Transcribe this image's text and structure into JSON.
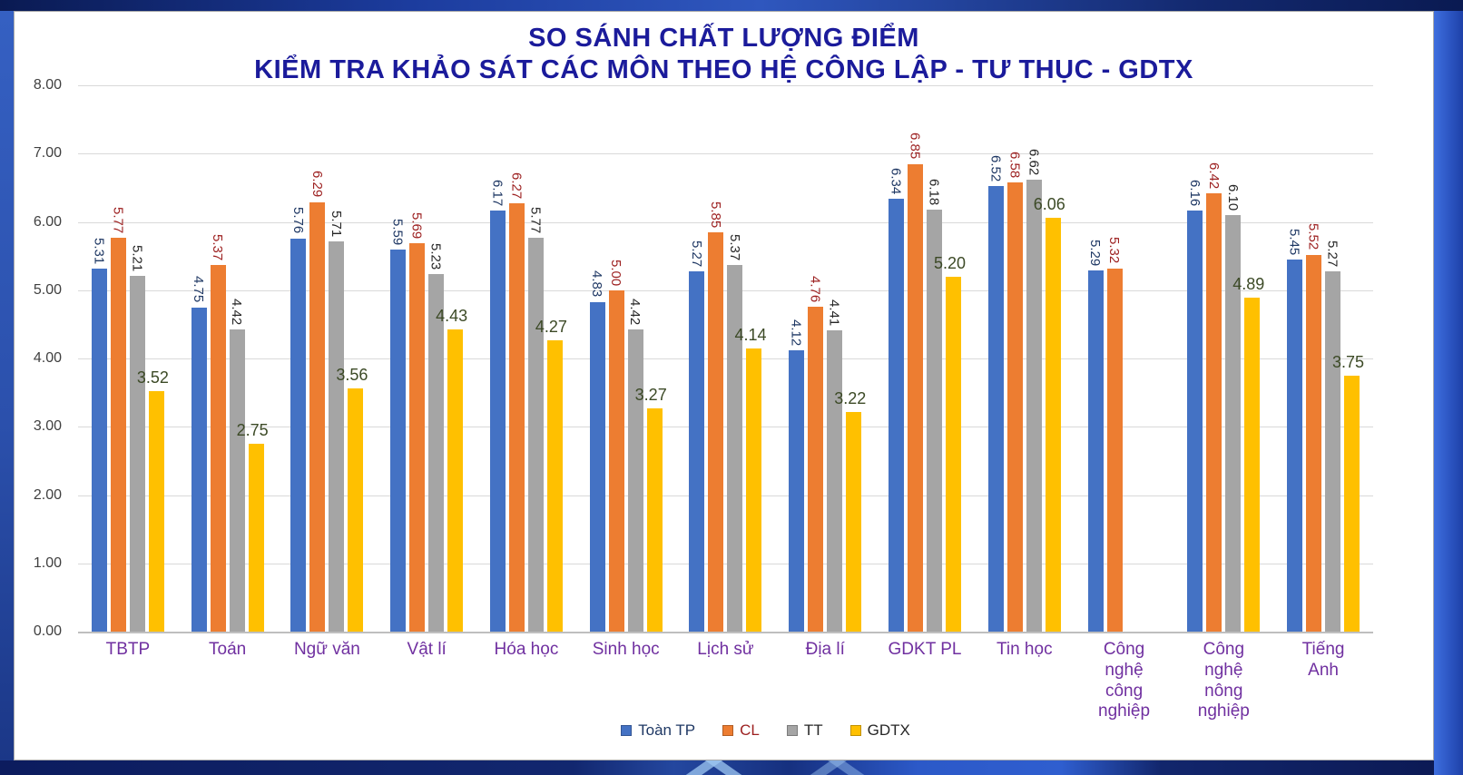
{
  "chart_data": {
    "type": "bar",
    "title_lines": [
      "SO SÁNH CHẤT LƯỢNG ĐIỂM",
      "KIỂM TRA KHẢO SÁT CÁC MÔN THEO HỆ CÔNG LẬP - TƯ THỤC - GDTX"
    ],
    "title_color": "#1B1B9B",
    "categories": [
      "TBTP",
      "Toán",
      "Ngữ văn",
      "Vật lí",
      "Hóa học",
      "Sinh học",
      "Lịch sử",
      "Địa lí",
      "GDKT PL",
      "Tin học",
      "Công\nnghệ\ncông\nnghiệp",
      "Công\nnghệ\nnông\nnghiệp",
      "Tiếng\nAnh"
    ],
    "category_label_color": "#7030A0",
    "series": [
      {
        "name": "Toàn TP",
        "color": "#4472C4",
        "label_color": "#1F3864",
        "legend_color": "#1F3864",
        "values": [
          5.31,
          4.75,
          5.76,
          5.59,
          6.17,
          4.83,
          5.27,
          4.12,
          6.34,
          6.52,
          5.29,
          6.16,
          5.45
        ]
      },
      {
        "name": "CL",
        "color": "#ED7D31",
        "label_color": "#9C1F1F",
        "legend_color": "#9C1F1F",
        "values": [
          5.77,
          5.37,
          6.29,
          5.69,
          6.27,
          5.0,
          5.85,
          4.76,
          6.85,
          6.58,
          5.32,
          6.42,
          5.52
        ]
      },
      {
        "name": "TT",
        "color": "#A5A5A5",
        "label_color": "#262626",
        "legend_color": "#262626",
        "values": [
          5.21,
          4.42,
          5.71,
          5.23,
          5.77,
          4.42,
          5.37,
          4.41,
          6.18,
          6.62,
          null,
          6.1,
          5.27
        ]
      },
      {
        "name": "GDTX",
        "color": "#FFC000",
        "label_color": "#3C4A26",
        "legend_color": "#262626",
        "values": [
          3.52,
          2.75,
          3.56,
          4.43,
          4.27,
          3.27,
          4.14,
          3.22,
          5.2,
          6.06,
          null,
          4.89,
          3.75
        ]
      }
    ],
    "ylim": [
      0,
      8
    ],
    "ytick_step": 1,
    "yticks": [
      "8.00",
      "7.00",
      "6.00",
      "5.00",
      "4.00",
      "3.00",
      "2.00",
      "1.00",
      "0.00"
    ],
    "ytick_color": "#404040",
    "grid": true,
    "legend_position": "bottom",
    "value_label_format": "0.00"
  }
}
